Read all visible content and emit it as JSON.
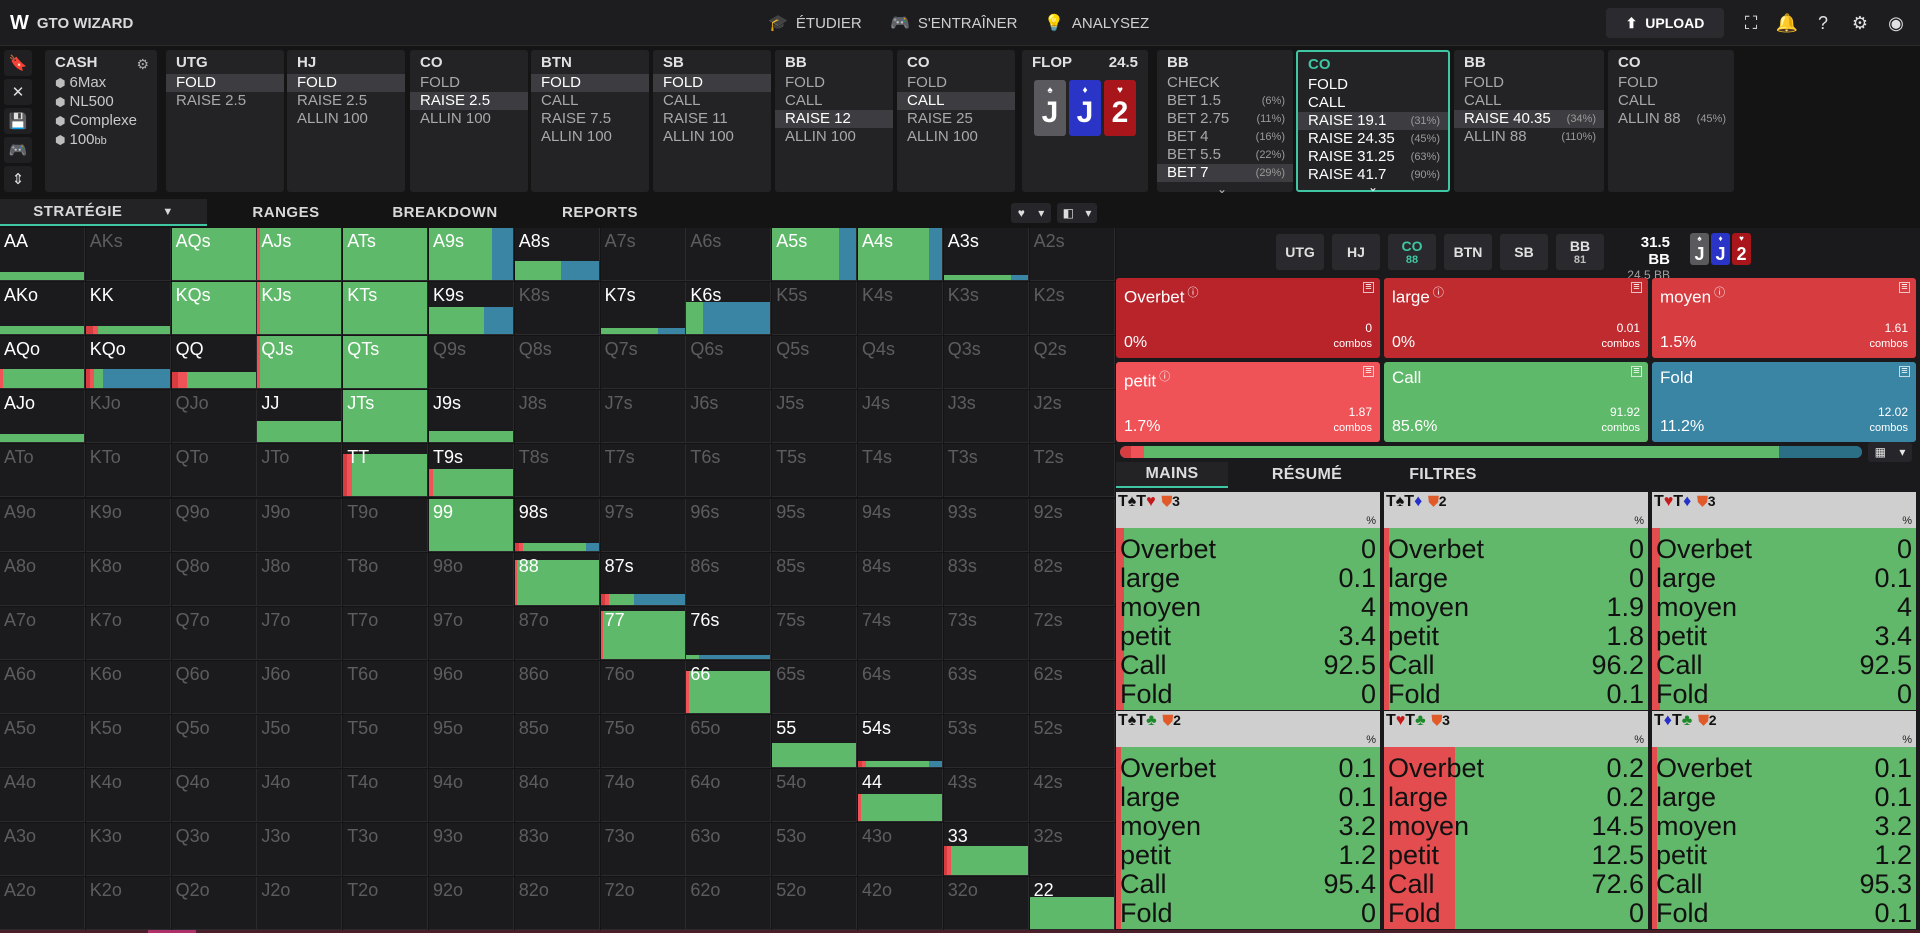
{
  "app": {
    "logo_mark": "W",
    "logo_text": "GTO WIZARD"
  },
  "nav": {
    "study": "ÉTUDIER",
    "practice": "S'ENTRAÎNER",
    "analyze": "ANALYSEZ",
    "upload": "UPLOAD"
  },
  "cash": {
    "title": "CASH",
    "items": [
      "6Max",
      "NL500",
      "Complexe",
      "100"
    ],
    "bb_unit": "bb"
  },
  "actions": [
    {
      "pos": "UTG",
      "opts": [
        "FOLD",
        "RAISE 2.5"
      ],
      "sel": 0
    },
    {
      "pos": "HJ",
      "opts": [
        "FOLD",
        "RAISE 2.5",
        "ALLIN 100"
      ],
      "sel": 0
    },
    {
      "pos": "CO",
      "opts": [
        "FOLD",
        "RAISE 2.5",
        "ALLIN 100"
      ],
      "sel": 1
    },
    {
      "pos": "BTN",
      "opts": [
        "FOLD",
        "CALL",
        "RAISE 7.5",
        "ALLIN 100"
      ],
      "sel": 0
    },
    {
      "pos": "SB",
      "opts": [
        "FOLD",
        "CALL",
        "RAISE 11",
        "ALLIN 100"
      ],
      "sel": 0
    },
    {
      "pos": "BB",
      "opts": [
        "FOLD",
        "CALL",
        "RAISE 12",
        "ALLIN 100"
      ],
      "sel": 2
    },
    {
      "pos": "CO",
      "opts": [
        "FOLD",
        "CALL",
        "RAISE 25",
        "ALLIN 100"
      ],
      "sel": 1
    }
  ],
  "flop": {
    "title": "FLOP",
    "pot": "24.5",
    "cards": [
      {
        "rank": "J",
        "suit": "♠",
        "color": "#5a5a5e"
      },
      {
        "rank": "J",
        "suit": "♦",
        "color": "#2a34c7"
      },
      {
        "rank": "2",
        "suit": "♥",
        "color": "#a8151a"
      }
    ]
  },
  "bb_panel": {
    "pos": "BB",
    "opts": [
      {
        "label": "CHECK",
        "pct": ""
      },
      {
        "label": "BET 1.5",
        "pct": "(6%)"
      },
      {
        "label": "BET 2.75",
        "pct": "(11%)"
      },
      {
        "label": "BET 4",
        "pct": "(16%)"
      },
      {
        "label": "BET 5.5",
        "pct": "(22%)"
      },
      {
        "label": "BET 7",
        "pct": "(29%)"
      }
    ],
    "sel": 5
  },
  "co_panel": {
    "pos": "CO",
    "opts": [
      {
        "label": "FOLD",
        "pct": ""
      },
      {
        "label": "CALL",
        "pct": ""
      },
      {
        "label": "RAISE 19.1",
        "pct": "(31%)"
      },
      {
        "label": "RAISE 24.35",
        "pct": "(45%)"
      },
      {
        "label": "RAISE 31.25",
        "pct": "(63%)"
      },
      {
        "label": "RAISE 41.7",
        "pct": "(90%)"
      }
    ],
    "sel": 2
  },
  "bb_panel2": {
    "pos": "BB",
    "opts": [
      {
        "label": "FOLD",
        "pct": ""
      },
      {
        "label": "CALL",
        "pct": ""
      },
      {
        "label": "RAISE 40.35",
        "pct": "(34%)"
      },
      {
        "label": "ALLIN 88",
        "pct": "(110%)"
      }
    ],
    "sel": 2
  },
  "co_panel2": {
    "pos": "CO",
    "opts": [
      {
        "label": "FOLD",
        "pct": ""
      },
      {
        "label": "CALL",
        "pct": ""
      },
      {
        "label": "ALLIN 88",
        "pct": "(45%)"
      }
    ],
    "sel": -1
  },
  "tabs": {
    "strategy": "STRATÉGIE",
    "ranges": "RANGES",
    "breakdown": "BREAKDOWN",
    "reports": "REPORTS"
  },
  "grid_ranks": [
    "A",
    "K",
    "Q",
    "J",
    "T",
    "9",
    "8",
    "7",
    "6",
    "5",
    "4",
    "3",
    "2"
  ],
  "grid_cells": {
    "AA": [
      0,
      0,
      0,
      0,
      100,
      0,
      15
    ],
    "AQs": [
      0,
      0,
      0,
      0,
      100,
      0,
      100
    ],
    "AJs": [
      0,
      0,
      0,
      3,
      97,
      0,
      100
    ],
    "ATs": [
      0,
      0,
      0,
      0,
      100,
      0,
      100
    ],
    "A9s": [
      0,
      0,
      0,
      0,
      75,
      25,
      100
    ],
    "A8s": [
      0,
      0,
      0,
      0,
      55,
      45,
      35
    ],
    "A5s": [
      0,
      0,
      0,
      0,
      80,
      20,
      100
    ],
    "A4s": [
      0,
      0,
      0,
      0,
      85,
      15,
      100
    ],
    "A3s": [
      0,
      0,
      0,
      0,
      80,
      20,
      10
    ],
    "AKo": [
      0,
      0,
      0,
      0,
      100,
      0,
      15
    ],
    "KK": [
      0,
      0,
      8,
      6,
      86,
      0,
      15
    ],
    "KQs": [
      0,
      0,
      0,
      0,
      100,
      0,
      100
    ],
    "KJs": [
      0,
      0,
      0,
      3,
      97,
      0,
      100
    ],
    "KTs": [
      0,
      0,
      0,
      0,
      100,
      0,
      100
    ],
    "K9s": [
      0,
      0,
      0,
      0,
      65,
      35,
      50
    ],
    "K7s": [
      0,
      0,
      0,
      0,
      68,
      32,
      12
    ],
    "K6s": [
      0,
      0,
      0,
      0,
      20,
      80,
      60
    ],
    "AQo": [
      0,
      0,
      0,
      3,
      97,
      0,
      35
    ],
    "KQo": [
      0,
      0,
      5,
      5,
      10,
      80,
      35
    ],
    "QQ": [
      0,
      0,
      8,
      10,
      82,
      0,
      30
    ],
    "QJs": [
      0,
      0,
      0,
      3,
      97,
      0,
      100
    ],
    "QTs": [
      0,
      0,
      0,
      0,
      100,
      0,
      100
    ],
    "AJo": [
      0,
      0,
      0,
      0,
      100,
      0,
      15
    ],
    "JJ": [
      0,
      0,
      0,
      0,
      100,
      0,
      40
    ],
    "JTs": [
      0,
      0,
      0,
      0,
      100,
      0,
      100
    ],
    "J9s": [
      0,
      0,
      0,
      0,
      100,
      0,
      20
    ],
    "TT": [
      0,
      0,
      5,
      5,
      90,
      0,
      80
    ],
    "T9s": [
      0,
      0,
      0,
      5,
      95,
      0,
      50
    ],
    "99": [
      0,
      0,
      0,
      0,
      100,
      0,
      100
    ],
    "98s": [
      0,
      0,
      5,
      5,
      75,
      15,
      15
    ],
    "88": [
      0,
      0,
      0,
      3,
      97,
      0,
      85
    ],
    "87s": [
      0,
      0,
      5,
      5,
      30,
      60,
      20
    ],
    "77": [
      0,
      0,
      0,
      3,
      97,
      0,
      90
    ],
    "76s": [
      0,
      0,
      0,
      0,
      15,
      85,
      6
    ],
    "66": [
      0,
      0,
      0,
      3,
      97,
      0,
      80
    ],
    "55": [
      0,
      0,
      0,
      0,
      100,
      0,
      45
    ],
    "54s": [
      0,
      0,
      5,
      5,
      75,
      15,
      12
    ],
    "44": [
      0,
      0,
      0,
      4,
      96,
      0,
      50
    ],
    "33": [
      0,
      0,
      4,
      4,
      92,
      0,
      55
    ],
    "22": [
      0,
      0,
      0,
      0,
      100,
      0,
      60
    ]
  },
  "right": {
    "positions": [
      {
        "name": "UTG",
        "stack": ""
      },
      {
        "name": "HJ",
        "stack": ""
      },
      {
        "name": "CO",
        "stack": "88",
        "hl": true
      },
      {
        "name": "BTN",
        "stack": ""
      },
      {
        "name": "SB",
        "stack": ""
      },
      {
        "name": "BB",
        "stack": "81"
      }
    ],
    "pot_main": "31.5 BB",
    "pot_sub": "24.5 BB",
    "action_boxes": [
      {
        "name": "Overbet",
        "pct": "0%",
        "combos": "0",
        "color": "#b8242a"
      },
      {
        "name": "large",
        "pct": "0%",
        "combos": "0.01",
        "color": "#c02b30"
      },
      {
        "name": "moyen",
        "pct": "1.5%",
        "combos": "1.61",
        "color": "#d63c40"
      },
      {
        "name": "petit",
        "pct": "1.7%",
        "combos": "1.87",
        "color": "#ef5257"
      },
      {
        "name": "Call",
        "pct": "85.6%",
        "combos": "91.92",
        "color": "#5fb96a"
      },
      {
        "name": "Fold",
        "pct": "11.2%",
        "combos": "12.02",
        "color": "#3a85a4"
      }
    ],
    "combos_label": "combos",
    "summary": [
      1.5,
      1.7,
      85.6,
      11.2
    ],
    "sub_tabs": {
      "hands": "MAINS",
      "summary": "RÉSUMÉ",
      "filters": "FILTRES"
    },
    "row_labels": [
      "Overbet",
      "large",
      "moyen",
      "petit",
      "Call",
      "Fold"
    ],
    "combos_tiles": [
      {
        "c1": "T",
        "s1": "♠",
        "k1": "",
        "c2": "T",
        "s2": "♥",
        "k2": "r",
        "n": "3",
        "vals": [
          "0",
          "0.1",
          "4",
          "3.4",
          "92.5",
          "0"
        ],
        "red": 3
      },
      {
        "c1": "T",
        "s1": "♠",
        "k1": "",
        "c2": "T",
        "s2": "♦",
        "k2": "b",
        "n": "2",
        "vals": [
          "0",
          "0",
          "1.9",
          "1.8",
          "96.2",
          "0.1"
        ],
        "red": 2
      },
      {
        "c1": "T",
        "s1": "♥",
        "k1": "r",
        "c2": "T",
        "s2": "♦",
        "k2": "b",
        "n": "3",
        "vals": [
          "0",
          "0.1",
          "4",
          "3.4",
          "92.5",
          "0"
        ],
        "red": 3
      },
      {
        "c1": "T",
        "s1": "♠",
        "k1": "",
        "c2": "T",
        "s2": "♣",
        "k2": "g",
        "n": "2",
        "vals": [
          "0.1",
          "0.1",
          "3.2",
          "1.2",
          "95.4",
          "0"
        ],
        "red": 2
      },
      {
        "c1": "T",
        "s1": "♥",
        "k1": "r",
        "c2": "T",
        "s2": "♣",
        "k2": "g",
        "n": "3",
        "vals": [
          "0.2",
          "0.2",
          "14.5",
          "12.5",
          "72.6",
          "0"
        ],
        "red": 27
      },
      {
        "c1": "T",
        "s1": "♦",
        "k1": "b",
        "c2": "T",
        "s2": "♣",
        "k2": "g",
        "n": "2",
        "vals": [
          "0.1",
          "0.1",
          "3.2",
          "1.2",
          "95.3",
          "0.1"
        ],
        "red": 2
      }
    ]
  }
}
